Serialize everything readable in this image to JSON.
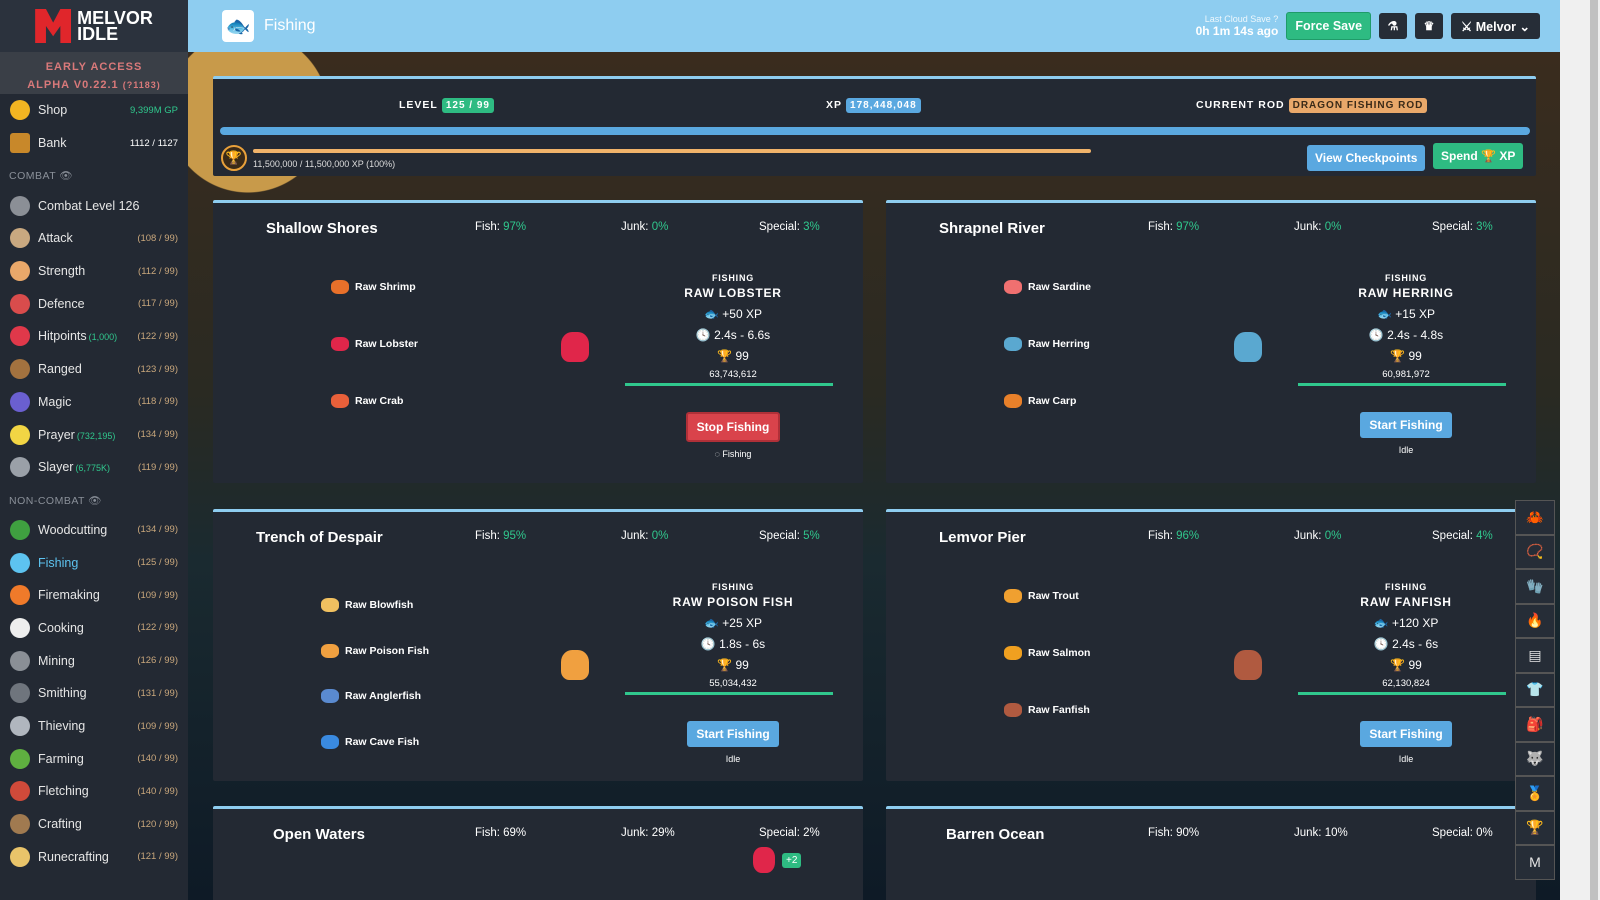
{
  "app": {
    "logo_text": "MELVOR IDLE",
    "alpha_line1": "EARLY ACCESS",
    "alpha_line2": "ALPHA V0.22.1",
    "build": "(?1183)"
  },
  "sidebar": {
    "shop": {
      "label": "Shop",
      "gp": "9,399M GP"
    },
    "bank": {
      "label": "Bank",
      "value": "1112 / 1127"
    },
    "combat_header": "COMBAT",
    "combat": [
      {
        "label": "Combat Level 126",
        "level": "",
        "extra": "",
        "color": "#8b8f96"
      },
      {
        "label": "Attack",
        "level": "(108 / 99)",
        "extra": "",
        "color": "#c8a880"
      },
      {
        "label": "Strength",
        "level": "(112 / 99)",
        "extra": "",
        "color": "#e9a86a"
      },
      {
        "label": "Defence",
        "level": "(117 / 99)",
        "extra": "",
        "color": "#d94c4c"
      },
      {
        "label": "Hitpoints",
        "level": "(122 / 99)",
        "extra": "(1,000)",
        "color": "#e0384a"
      },
      {
        "label": "Ranged",
        "level": "(123 / 99)",
        "extra": "",
        "color": "#a3723f"
      },
      {
        "label": "Magic",
        "level": "(118 / 99)",
        "extra": "",
        "color": "#6a5fd0"
      },
      {
        "label": "Prayer",
        "level": "(134 / 99)",
        "extra": "(732,195)",
        "color": "#f2d544"
      },
      {
        "label": "Slayer",
        "level": "(119 / 99)",
        "extra": "(6,775K)",
        "color": "#9aa0a8"
      }
    ],
    "noncombat_header": "NON-COMBAT",
    "noncombat": [
      {
        "label": "Woodcutting",
        "level": "(134 / 99)",
        "color": "#3fa040"
      },
      {
        "label": "Fishing",
        "level": "(125 / 99)",
        "color": "#5dc3f0",
        "active": true
      },
      {
        "label": "Firemaking",
        "level": "(109 / 99)",
        "color": "#f07a2a"
      },
      {
        "label": "Cooking",
        "level": "(122 / 99)",
        "color": "#eeeeee"
      },
      {
        "label": "Mining",
        "level": "(126 / 99)",
        "color": "#8a8f96"
      },
      {
        "label": "Smithing",
        "level": "(131 / 99)",
        "color": "#6f757d"
      },
      {
        "label": "Thieving",
        "level": "(109 / 99)",
        "color": "#b0b6be"
      },
      {
        "label": "Farming",
        "level": "(140 / 99)",
        "color": "#5fb040"
      },
      {
        "label": "Fletching",
        "level": "(140 / 99)",
        "color": "#d04a3a"
      },
      {
        "label": "Crafting",
        "level": "(120 / 99)",
        "color": "#a07a50"
      },
      {
        "label": "Runecrafting",
        "level": "(121 / 99)",
        "color": "#e9c46a"
      }
    ]
  },
  "header": {
    "title": "Fishing",
    "cloud_label": "Last Cloud Save",
    "cloud_time": "0h 1m 14s ago",
    "force_save": "Force Save",
    "user": "Melvor"
  },
  "skill": {
    "level_label": "LEVEL",
    "level": "125 / 99",
    "xp_label": "XP",
    "xp": "178,448,048",
    "rod_label": "CURRENT ROD",
    "rod": "DRAGON FISHING ROD",
    "mastery_pool": "11,500,000 / 11,500,000 XP (100%)",
    "mastery_pct": 100,
    "view_checkpoints": "View Checkpoints",
    "spend": "Spend",
    "spend_xp": "XP"
  },
  "colors": {
    "accent": "#8ecdf0",
    "green": "#30c78d",
    "red": "#d9434b",
    "blue": "#5aa8e0"
  },
  "areas": [
    {
      "name": "Shallow Shores",
      "fish": "97%",
      "junk": "0%",
      "special": "3%",
      "fishes": [
        {
          "name": "Raw Shrimp",
          "color": "#e8702a"
        },
        {
          "name": "Raw Lobster",
          "color": "#e0264a"
        },
        {
          "name": "Raw Crab",
          "color": "#e8603a"
        }
      ],
      "selected": {
        "label": "FISHING",
        "name": "RAW LOBSTER",
        "xp": "+50 XP",
        "time": "2.4s - 6.6s",
        "mastery": "99",
        "mastery_xp": "63,743,612",
        "color": "#e0264a"
      },
      "button": "Stop Fishing",
      "status": "Fishing",
      "active": true
    },
    {
      "name": "Shrapnel River",
      "fish": "97%",
      "junk": "0%",
      "special": "3%",
      "fishes": [
        {
          "name": "Raw Sardine",
          "color": "#f07070"
        },
        {
          "name": "Raw Herring",
          "color": "#5aa8d0"
        },
        {
          "name": "Raw Carp",
          "color": "#e8802a"
        }
      ],
      "selected": {
        "label": "FISHING",
        "name": "RAW HERRING",
        "xp": "+15 XP",
        "time": "2.4s - 4.8s",
        "mastery": "99",
        "mastery_xp": "60,981,972",
        "color": "#5aa8d0"
      },
      "button": "Start Fishing",
      "status": "Idle",
      "active": false
    },
    {
      "name": "Trench of Despair",
      "fish": "95%",
      "junk": "0%",
      "special": "5%",
      "fishes": [
        {
          "name": "Raw Blowfish",
          "color": "#f0c060"
        },
        {
          "name": "Raw Poison Fish",
          "color": "#f0a040"
        },
        {
          "name": "Raw Anglerfish",
          "color": "#5a8ad0"
        },
        {
          "name": "Raw Cave Fish",
          "color": "#3a8ae0"
        }
      ],
      "selected": {
        "label": "FISHING",
        "name": "RAW POISON FISH",
        "xp": "+25 XP",
        "time": "1.8s - 6s",
        "mastery": "99",
        "mastery_xp": "55,034,432",
        "color": "#f0a040"
      },
      "button": "Start Fishing",
      "status": "Idle",
      "active": false
    },
    {
      "name": "Lemvor Pier",
      "fish": "96%",
      "junk": "0%",
      "special": "4%",
      "fishes": [
        {
          "name": "Raw Trout",
          "color": "#f0a030"
        },
        {
          "name": "Raw Salmon",
          "color": "#f0a020"
        },
        {
          "name": "Raw Fanfish",
          "color": "#b05a40"
        }
      ],
      "selected": {
        "label": "FISHING",
        "name": "RAW FANFISH",
        "xp": "+120 XP",
        "time": "2.4s - 6s",
        "mastery": "99",
        "mastery_xp": "62,130,824",
        "color": "#b05a40"
      },
      "button": "Start Fishing",
      "status": "Idle",
      "active": false
    },
    {
      "name": "Open Waters",
      "fish": "69%",
      "junk": "29%",
      "special": "2%",
      "special_bonus": "+2",
      "plain": true
    },
    {
      "name": "Barren Ocean",
      "fish": "90%",
      "junk": "10%",
      "special": "0%",
      "plain": true
    }
  ],
  "right_bar": [
    "crab-icon",
    "amulet-icon",
    "gloves-icon",
    "cape-icon",
    "chest-icon",
    "armor-icon",
    "backpack-icon",
    "wolf-icon",
    "medal-icon",
    "trophy-icon",
    "melvor-icon"
  ]
}
